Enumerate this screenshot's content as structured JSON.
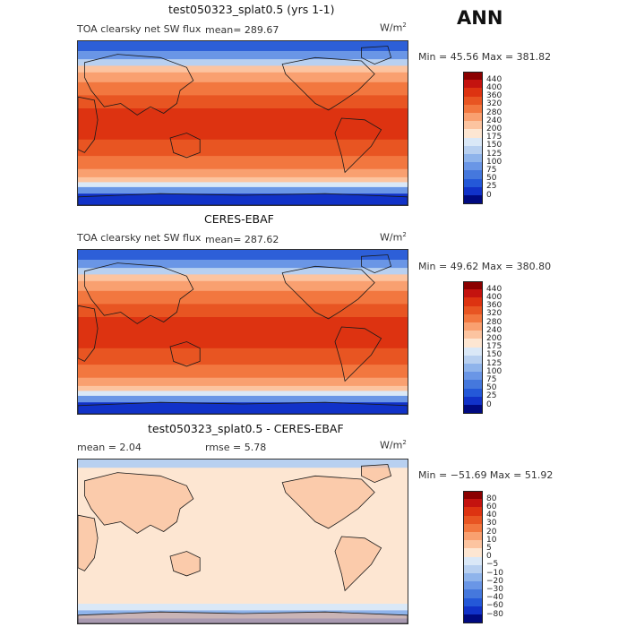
{
  "season": "ANN",
  "panels": [
    {
      "title": "test050323_splat0.5 (yrs 1-1)",
      "variable": "TOA clearsky net SW flux",
      "stat_text": "mean= 289.67",
      "units": "W/m",
      "units_exp": "2",
      "minmax": "Min =  45.56 Max = 381.82",
      "colorbar": {
        "ticks": [
          "440",
          "400",
          "360",
          "320",
          "280",
          "240",
          "200",
          "175",
          "150",
          "125",
          "100",
          "75",
          "50",
          "25",
          "0"
        ],
        "colors": [
          "#8b0000",
          "#c4130f",
          "#dd3311",
          "#e85522",
          "#f2773f",
          "#f9a070",
          "#fcc4a0",
          "#fde6d2",
          "#dae8f7",
          "#b8d0f0",
          "#8fb4eb",
          "#6a96e6",
          "#4578dd",
          "#2458d8",
          "#1132c8",
          "#000a80"
        ]
      }
    },
    {
      "title": "CERES-EBAF",
      "variable": "TOA clearsky net SW flux",
      "stat_text": "mean= 287.62",
      "units": "W/m",
      "units_exp": "2",
      "minmax": "Min =  49.62 Max = 380.80",
      "colorbar": {
        "ticks": [
          "440",
          "400",
          "360",
          "320",
          "280",
          "240",
          "200",
          "175",
          "150",
          "125",
          "100",
          "75",
          "50",
          "25",
          "0"
        ],
        "colors": [
          "#8b0000",
          "#c4130f",
          "#dd3311",
          "#e85522",
          "#f2773f",
          "#f9a070",
          "#fcc4a0",
          "#fde6d2",
          "#dae8f7",
          "#b8d0f0",
          "#8fb4eb",
          "#6a96e6",
          "#4578dd",
          "#2458d8",
          "#1132c8",
          "#000a80"
        ]
      }
    },
    {
      "title": "test050323_splat0.5 - CERES-EBAF",
      "mean_text": "mean =    2.04",
      "rmse_text": "rmse =    5.78",
      "units": "W/m",
      "units_exp": "2",
      "minmax": "Min = −51.69 Max =  51.92",
      "colorbar": {
        "ticks": [
          "80",
          "60",
          "40",
          "30",
          "20",
          "10",
          "5",
          "0",
          "−5",
          "−10",
          "−20",
          "−30",
          "−40",
          "−60",
          "−80"
        ],
        "colors": [
          "#8b0000",
          "#c4130f",
          "#dd3311",
          "#e85522",
          "#f2773f",
          "#f9a070",
          "#fcc4a0",
          "#fde6d2",
          "#dae8f7",
          "#b8d0f0",
          "#8fb4eb",
          "#6a96e6",
          "#4578dd",
          "#2458d8",
          "#1132c8",
          "#000a80"
        ]
      }
    }
  ]
}
